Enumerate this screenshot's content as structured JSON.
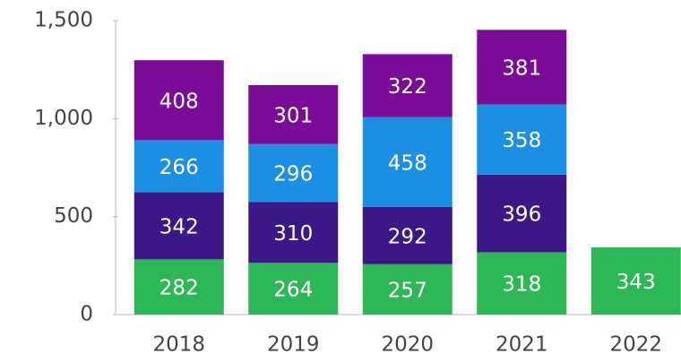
{
  "chart_data": {
    "type": "stacked_bar",
    "categories": [
      "2018",
      "2019",
      "2020",
      "2021",
      "2022"
    ],
    "series": [
      {
        "color": "#2db757",
        "values": [
          282,
          264,
          257,
          318,
          343
        ]
      },
      {
        "color": "#3c1786",
        "values": [
          342,
          310,
          292,
          396,
          null
        ]
      },
      {
        "color": "#1c8fe2",
        "values": [
          266,
          296,
          458,
          358,
          null
        ]
      },
      {
        "color": "#7a0c98",
        "values": [
          408,
          301,
          322,
          381,
          null
        ]
      }
    ],
    "ylim": [
      0,
      1500
    ],
    "yticks": [
      0,
      500,
      {
        "value": 1000,
        "label": "1,000"
      },
      {
        "value": 1500,
        "label": "1,500"
      }
    ],
    "grid": false
  }
}
